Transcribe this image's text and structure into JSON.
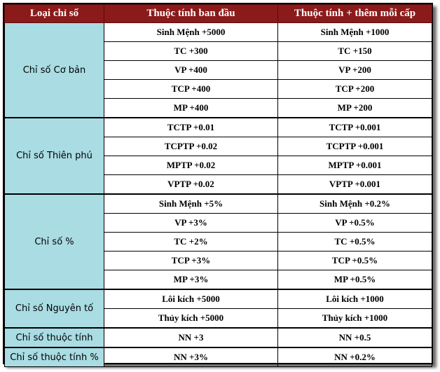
{
  "header": {
    "col1": "Loại chỉ số",
    "col2": "Thuộc tính ban đầu",
    "col3": "Thuộc tính + thêm mỗi cấp"
  },
  "groups": [
    {
      "category": "Chỉ số Cơ bản",
      "rows": [
        {
          "base": "Sinh Mệnh +5000",
          "per_level": "Sinh Mệnh +1000"
        },
        {
          "base": "TC +300",
          "per_level": "TC +150"
        },
        {
          "base": "VP +400",
          "per_level": "VP +200"
        },
        {
          "base": "TCP +400",
          "per_level": "TCP +200"
        },
        {
          "base": "MP +400",
          "per_level": "MP +200"
        }
      ]
    },
    {
      "category": "Chỉ số Thiên phú",
      "rows": [
        {
          "base": "TCTP +0.01",
          "per_level": "TCTP +0.001"
        },
        {
          "base": "TCPTP +0.02",
          "per_level": "TCPTP +0.001"
        },
        {
          "base": "MPTP +0.02",
          "per_level": "MPTP +0.001"
        },
        {
          "base": "VPTP +0.02",
          "per_level": "VPTP +0.001"
        }
      ]
    },
    {
      "category": "Chỉ số %",
      "rows": [
        {
          "base": "Sinh Mệnh +5%",
          "per_level": "Sinh Mệnh +0.2%"
        },
        {
          "base": "VP +3%",
          "per_level": "VP +0.5%"
        },
        {
          "base": "TC +2%",
          "per_level": "TC +0.5%"
        },
        {
          "base": "TCP +3%",
          "per_level": "TCP +0.5%"
        },
        {
          "base": "MP +3%",
          "per_level": "MP +0.5%"
        }
      ]
    },
    {
      "category": "Chỉ số Nguyên tố",
      "rows": [
        {
          "base": "Lôi kích +5000",
          "per_level": "Lôi kích +1000"
        },
        {
          "base": "Thủy kích +5000",
          "per_level": "Thủy kích +1000"
        }
      ]
    },
    {
      "category": "Chỉ số thuộc tính",
      "rows": [
        {
          "base": "NN +3",
          "per_level": "NN +0.5"
        }
      ]
    },
    {
      "category": "Chỉ số thuộc tính %",
      "rows": [
        {
          "base": "NN +3%",
          "per_level": "NN +0.2%"
        }
      ]
    }
  ],
  "colors": {
    "header_bg": "#8b1a1a",
    "category_bg": "#a9dce3"
  }
}
